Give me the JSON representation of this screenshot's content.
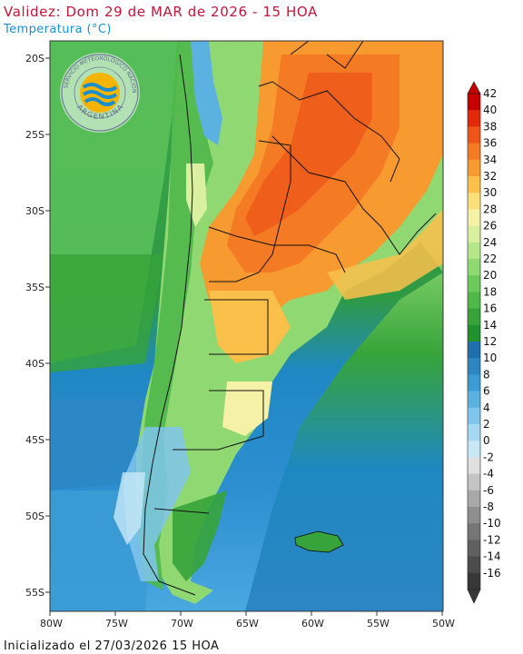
{
  "header": {
    "title": "Validez: Dom 29 de MAR de 2026 - 15 HOA",
    "subtitle": "Temperatura (°C)"
  },
  "footer": {
    "init_text": "Inicializado el 27/03/2026 15 HOA"
  },
  "logo": {
    "arc_text": "SERVICIO METEOROLÓGICO NACIONAL",
    "country": "ARGENTINA"
  },
  "map": {
    "variable": "Temperatura",
    "units": "°C",
    "lat_labels": [
      "20S",
      "25S",
      "30S",
      "35S",
      "40S",
      "45S",
      "50S",
      "55S"
    ],
    "lon_labels": [
      "80W",
      "75W",
      "70W",
      "65W",
      "60W",
      "55W",
      "50W"
    ],
    "lat_range": [
      -56,
      -19
    ],
    "lon_range": [
      -80,
      -50
    ]
  },
  "colorbar": {
    "labels": [
      "42",
      "40",
      "38",
      "36",
      "34",
      "32",
      "30",
      "28",
      "26",
      "24",
      "22",
      "20",
      "18",
      "16",
      "14",
      "12",
      "10",
      "8",
      "6",
      "4",
      "2",
      "0",
      "-2",
      "-4",
      "-6",
      "-8",
      "-10",
      "-12",
      "-14",
      "-16"
    ],
    "colors": [
      "#c60000",
      "#e12a0a",
      "#ef5418",
      "#f47b24",
      "#f79a30",
      "#fbc04a",
      "#fbe07a",
      "#f5f2a8",
      "#d8f0a0",
      "#b6e68a",
      "#8fd872",
      "#6cc95c",
      "#4fb84a",
      "#36a43a",
      "#1e9330",
      "#1f6fb0",
      "#2c86c4",
      "#3b9bd4",
      "#5bb1e0",
      "#80c6ec",
      "#a6d8f2",
      "#c8e8f8",
      "#e0e0e0",
      "#c4c4c4",
      "#a8a8a8",
      "#8e8e8e",
      "#767676",
      "#606060",
      "#4c4c4c",
      "#383838"
    ]
  }
}
